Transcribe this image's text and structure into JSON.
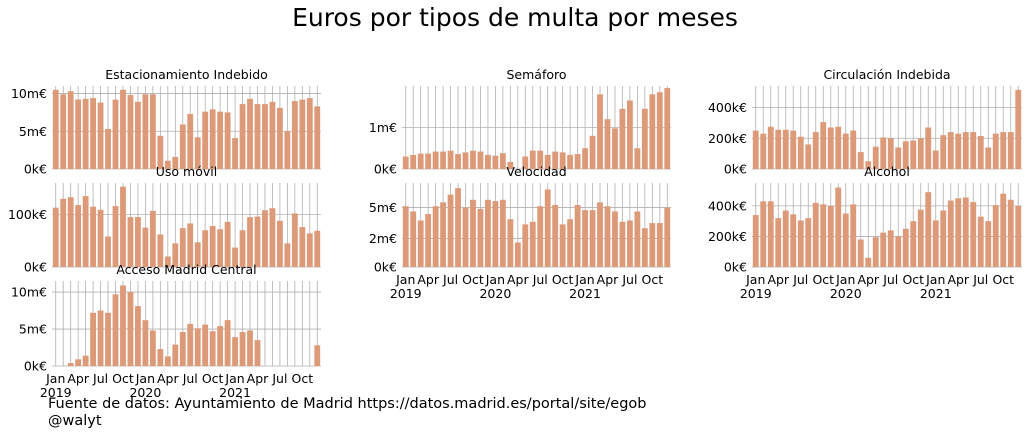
{
  "title": "Euros por tipos de multa por meses",
  "footer": {
    "source": "Fuente de datos: Ayuntamiento de Madrid https://datos.madrid.es/portal/site/egob",
    "author": "@walyt"
  },
  "colors": {
    "bar": "#dd9a78",
    "grid": "#b0b0b0"
  },
  "chart_data": [
    {
      "type": "bar",
      "title": "Estacionamiento Indebido",
      "x": [
        "2019-01",
        "2019-02",
        "2019-03",
        "2019-04",
        "2019-05",
        "2019-06",
        "2019-07",
        "2019-08",
        "2019-09",
        "2019-10",
        "2019-11",
        "2019-12",
        "2020-01",
        "2020-02",
        "2020-03",
        "2020-04",
        "2020-05",
        "2020-06",
        "2020-07",
        "2020-08",
        "2020-09",
        "2020-10",
        "2020-11",
        "2020-12",
        "2021-01",
        "2021-02",
        "2021-03",
        "2021-04",
        "2021-05",
        "2021-06",
        "2021-07",
        "2021-08",
        "2021-09",
        "2021-10",
        "2021-11",
        "2021-12"
      ],
      "values": [
        10.5,
        9.9,
        10.3,
        9.2,
        9.3,
        9.4,
        8.8,
        5.3,
        9.2,
        10.5,
        9.8,
        8.9,
        9.9,
        9.9,
        4.4,
        1.1,
        1.6,
        5.9,
        7.3,
        4.2,
        7.6,
        7.9,
        7.6,
        7.5,
        4.1,
        8.6,
        9.3,
        8.6,
        8.6,
        8.9,
        8.1,
        5.0,
        9.0,
        9.2,
        9.4,
        8.3
      ],
      "ylim": [
        0,
        11
      ],
      "yticks": [
        0,
        5,
        10
      ],
      "ytick_labels": [
        "0k€",
        "5m€",
        "10m€"
      ],
      "xtick_labels": []
    },
    {
      "type": "bar",
      "title": "Semáforo",
      "x": [
        "2019-01",
        "2019-02",
        "2019-03",
        "2019-04",
        "2019-05",
        "2019-06",
        "2019-07",
        "2019-08",
        "2019-09",
        "2019-10",
        "2019-11",
        "2019-12",
        "2020-01",
        "2020-02",
        "2020-03",
        "2020-04",
        "2020-05",
        "2020-06",
        "2020-07",
        "2020-08",
        "2020-09",
        "2020-10",
        "2020-11",
        "2020-12",
        "2021-01",
        "2021-02",
        "2021-03",
        "2021-04",
        "2021-05",
        "2021-06",
        "2021-07",
        "2021-08",
        "2021-09",
        "2021-10",
        "2021-11",
        "2021-12"
      ],
      "values": [
        0.3,
        0.34,
        0.37,
        0.37,
        0.42,
        0.42,
        0.44,
        0.36,
        0.4,
        0.44,
        0.42,
        0.34,
        0.32,
        0.38,
        0.17,
        0.0,
        0.3,
        0.44,
        0.44,
        0.34,
        0.42,
        0.4,
        0.34,
        0.36,
        0.5,
        0.8,
        1.8,
        1.2,
        0.98,
        1.45,
        1.65,
        0.5,
        1.45,
        1.8,
        1.85,
        1.95
      ],
      "ylim": [
        0,
        2.0
      ],
      "yticks": [
        0,
        1
      ],
      "ytick_labels": [
        "0k€",
        "1m€"
      ],
      "xtick_labels": []
    },
    {
      "type": "bar",
      "title": "Circulación Indebida",
      "x": [
        "2019-01",
        "2019-02",
        "2019-03",
        "2019-04",
        "2019-05",
        "2019-06",
        "2019-07",
        "2019-08",
        "2019-09",
        "2019-10",
        "2019-11",
        "2019-12",
        "2020-01",
        "2020-02",
        "2020-03",
        "2020-04",
        "2020-05",
        "2020-06",
        "2020-07",
        "2020-08",
        "2020-09",
        "2020-10",
        "2020-11",
        "2020-12",
        "2021-01",
        "2021-02",
        "2021-03",
        "2021-04",
        "2021-05",
        "2021-06",
        "2021-07",
        "2021-08",
        "2021-09",
        "2021-10",
        "2021-11",
        "2021-12"
      ],
      "values": [
        250,
        230,
        275,
        255,
        255,
        250,
        210,
        160,
        240,
        305,
        270,
        275,
        230,
        250,
        110,
        50,
        145,
        205,
        200,
        140,
        180,
        185,
        200,
        270,
        120,
        220,
        240,
        230,
        240,
        240,
        215,
        140,
        230,
        240,
        240,
        515
      ],
      "ylim": [
        0,
        540
      ],
      "yticks": [
        0,
        200,
        400
      ],
      "ytick_labels": [
        "0k€",
        "200k€",
        "400k€"
      ],
      "xtick_labels": []
    },
    {
      "type": "bar",
      "title": "Uso móvil",
      "x": [
        "2019-01",
        "2019-02",
        "2019-03",
        "2019-04",
        "2019-05",
        "2019-06",
        "2019-07",
        "2019-08",
        "2019-09",
        "2019-10",
        "2019-11",
        "2019-12",
        "2020-01",
        "2020-02",
        "2020-03",
        "2020-04",
        "2020-05",
        "2020-06",
        "2020-07",
        "2020-08",
        "2020-09",
        "2020-10",
        "2020-11",
        "2020-12",
        "2021-01",
        "2021-02",
        "2021-03",
        "2021-04",
        "2021-05",
        "2021-06",
        "2021-07",
        "2021-08",
        "2021-09",
        "2021-10",
        "2021-11",
        "2021-12"
      ],
      "values": [
        113,
        130,
        133,
        118,
        135,
        115,
        109,
        58,
        116,
        153,
        95,
        95,
        75,
        107,
        62,
        20,
        45,
        74,
        83,
        47,
        70,
        78,
        72,
        86,
        37,
        70,
        95,
        96,
        108,
        112,
        88,
        45,
        102,
        76,
        64,
        69
      ],
      "ylim": [
        0,
        160
      ],
      "yticks": [
        0,
        100
      ],
      "ytick_labels": [
        "0k€",
        "100k€"
      ],
      "xtick_labels": []
    },
    {
      "type": "bar",
      "title": "Velocidad",
      "x": [
        "2019-01",
        "2019-02",
        "2019-03",
        "2019-04",
        "2019-05",
        "2019-06",
        "2019-07",
        "2019-08",
        "2019-09",
        "2019-10",
        "2019-11",
        "2019-12",
        "2020-01",
        "2020-02",
        "2020-03",
        "2020-04",
        "2020-05",
        "2020-06",
        "2020-07",
        "2020-08",
        "2020-09",
        "2020-10",
        "2020-11",
        "2020-12",
        "2021-01",
        "2021-02",
        "2021-03",
        "2021-04",
        "2021-05",
        "2021-06",
        "2021-07",
        "2021-08",
        "2021-09",
        "2021-10",
        "2021-11",
        "2021-12"
      ],
      "values": [
        4.7,
        4.3,
        3.6,
        4.1,
        4.7,
        5.0,
        5.6,
        6.1,
        4.6,
        5.2,
        4.5,
        5.2,
        5.1,
        5.2,
        3.7,
        1.9,
        3.3,
        3.5,
        4.7,
        6.0,
        4.8,
        3.3,
        3.7,
        4.8,
        4.4,
        4.4,
        5.0,
        4.7,
        4.3,
        3.5,
        3.6,
        4.3,
        3.0,
        3.4,
        3.4,
        4.6
      ],
      "ylim": [
        0,
        6.5
      ],
      "yticks": [
        0,
        2.2,
        4.6
      ],
      "ytick_labels": [
        "0k€",
        "2m€",
        "5m€"
      ],
      "xtick_labels": [
        "Jan\n2019",
        "Apr",
        "Jul",
        "Oct",
        "Jan\n2020",
        "Apr",
        "Jul",
        "Oct",
        "Jan\n2021",
        "Apr",
        "Jul",
        "Oct"
      ]
    },
    {
      "type": "bar",
      "title": "Alcohol",
      "x": [
        "2019-01",
        "2019-02",
        "2019-03",
        "2019-04",
        "2019-05",
        "2019-06",
        "2019-07",
        "2019-08",
        "2019-09",
        "2019-10",
        "2019-11",
        "2019-12",
        "2020-01",
        "2020-02",
        "2020-03",
        "2020-04",
        "2020-05",
        "2020-06",
        "2020-07",
        "2020-08",
        "2020-09",
        "2020-10",
        "2020-11",
        "2020-12",
        "2021-01",
        "2021-02",
        "2021-03",
        "2021-04",
        "2021-05",
        "2021-06",
        "2021-07",
        "2021-08",
        "2021-09",
        "2021-10",
        "2021-11",
        "2021-12"
      ],
      "values": [
        340,
        430,
        430,
        320,
        370,
        345,
        305,
        320,
        420,
        410,
        400,
        520,
        350,
        410,
        180,
        60,
        195,
        225,
        240,
        200,
        250,
        300,
        375,
        490,
        305,
        370,
        435,
        450,
        455,
        425,
        330,
        300,
        405,
        480,
        440,
        400
      ],
      "ylim": [
        0,
        550
      ],
      "yticks": [
        0,
        200,
        400
      ],
      "ytick_labels": [
        "0k€",
        "200k€",
        "400k€"
      ],
      "xtick_labels": [
        "Jan\n2019",
        "Apr",
        "Jul",
        "Oct",
        "Jan\n2020",
        "Apr",
        "Jul",
        "Oct",
        "Jan\n2021",
        "Apr",
        "Jul",
        "Oct"
      ]
    },
    {
      "type": "bar",
      "title": "Acceso Madrid Central",
      "x": [
        "2019-01",
        "2019-02",
        "2019-03",
        "2019-04",
        "2019-05",
        "2019-06",
        "2019-07",
        "2019-08",
        "2019-09",
        "2019-10",
        "2019-11",
        "2019-12",
        "2020-01",
        "2020-02",
        "2020-03",
        "2020-04",
        "2020-05",
        "2020-06",
        "2020-07",
        "2020-08",
        "2020-09",
        "2020-10",
        "2020-11",
        "2020-12",
        "2021-01",
        "2021-02",
        "2021-03",
        "2021-04",
        "2021-05",
        "2021-06",
        "2021-07",
        "2021-08",
        "2021-09",
        "2021-10",
        "2021-11",
        "2021-12"
      ],
      "values": [
        0,
        0,
        0.4,
        0.9,
        1.4,
        7.2,
        7.5,
        7.2,
        9.7,
        10.9,
        10.0,
        8.1,
        6.2,
        4.8,
        2.3,
        1.3,
        2.9,
        4.6,
        5.7,
        5.1,
        5.6,
        4.7,
        5.4,
        6.2,
        3.9,
        4.6,
        4.8,
        3.5,
        0,
        0,
        0,
        0,
        0,
        0,
        0,
        2.8
      ],
      "ylim": [
        0,
        11.5
      ],
      "yticks": [
        0,
        5,
        10
      ],
      "ytick_labels": [
        "0k€",
        "5m€",
        "10m€"
      ],
      "xtick_labels": [
        "Jan\n2019",
        "Apr",
        "Jul",
        "Oct",
        "Jan\n2020",
        "Apr",
        "Jul",
        "Oct",
        "Jan\n2021",
        "Apr",
        "Jul",
        "Oct"
      ]
    }
  ]
}
